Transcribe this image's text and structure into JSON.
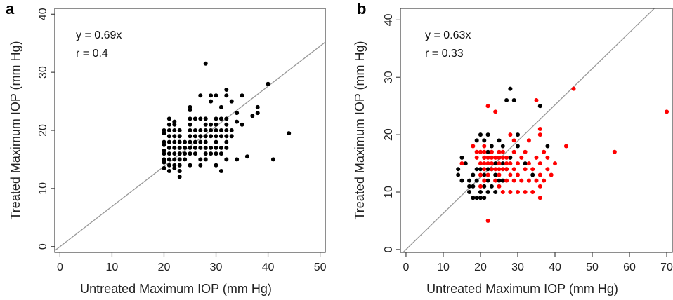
{
  "chart_data": [
    {
      "panel": "a",
      "type": "scatter",
      "xlabel": "Untreated Maximum IOP (mm Hg)",
      "ylabel": "Treated Maximum IOP (mm Hg)",
      "xlim": [
        -1,
        51
      ],
      "ylim": [
        -1,
        41
      ],
      "xticks": [
        0,
        10,
        20,
        30,
        40,
        50
      ],
      "yticks": [
        0,
        10,
        20,
        30,
        40
      ],
      "annotations": [
        "y = 0.69x",
        "r = 0.4"
      ],
      "line": {
        "slope": 0.69,
        "color": "#999999"
      },
      "series": [
        {
          "color": "#000000",
          "points": [
            [
              20,
              13.5
            ],
            [
              20,
              14.5
            ],
            [
              20,
              15
            ],
            [
              20,
              16
            ],
            [
              20,
              16.5
            ],
            [
              20,
              17.5
            ],
            [
              20,
              18
            ],
            [
              20,
              19.5
            ],
            [
              20,
              20
            ],
            [
              21,
              13
            ],
            [
              21,
              14
            ],
            [
              21,
              15
            ],
            [
              21,
              16
            ],
            [
              21,
              17
            ],
            [
              21,
              18
            ],
            [
              21,
              19
            ],
            [
              21,
              20
            ],
            [
              21,
              21
            ],
            [
              21,
              22
            ],
            [
              22,
              13.5
            ],
            [
              22,
              14
            ],
            [
              22,
              15
            ],
            [
              22,
              16
            ],
            [
              22,
              17
            ],
            [
              22,
              18
            ],
            [
              22,
              19
            ],
            [
              22,
              20
            ],
            [
              22,
              21
            ],
            [
              22,
              21.5
            ],
            [
              23,
              12
            ],
            [
              23,
              13
            ],
            [
              23,
              14
            ],
            [
              23,
              15
            ],
            [
              23,
              16
            ],
            [
              23,
              17
            ],
            [
              23,
              18
            ],
            [
              23,
              19
            ],
            [
              23,
              20
            ],
            [
              24,
              15
            ],
            [
              24,
              16
            ],
            [
              24,
              17
            ],
            [
              24,
              18
            ],
            [
              25,
              14
            ],
            [
              25,
              16
            ],
            [
              25,
              17
            ],
            [
              25,
              18
            ],
            [
              25,
              19
            ],
            [
              25,
              20
            ],
            [
              25,
              21
            ],
            [
              25,
              22
            ],
            [
              25,
              23.5
            ],
            [
              25,
              24
            ],
            [
              26,
              16
            ],
            [
              26,
              17
            ],
            [
              26,
              18
            ],
            [
              26,
              19
            ],
            [
              26,
              20
            ],
            [
              26,
              22
            ],
            [
              27,
              14
            ],
            [
              27,
              15
            ],
            [
              27,
              17
            ],
            [
              27,
              18
            ],
            [
              27,
              19
            ],
            [
              27,
              20
            ],
            [
              27,
              22
            ],
            [
              27,
              26
            ],
            [
              28,
              15
            ],
            [
              28,
              16
            ],
            [
              28,
              17
            ],
            [
              28,
              18
            ],
            [
              28,
              19
            ],
            [
              28,
              20
            ],
            [
              28,
              21
            ],
            [
              28,
              22
            ],
            [
              28,
              31.5
            ],
            [
              29,
              16
            ],
            [
              29,
              17
            ],
            [
              29,
              19
            ],
            [
              29,
              20
            ],
            [
              29,
              21
            ],
            [
              29,
              25
            ],
            [
              29,
              26
            ],
            [
              30,
              14
            ],
            [
              30,
              16
            ],
            [
              30,
              17
            ],
            [
              30,
              18
            ],
            [
              30,
              19
            ],
            [
              30,
              20
            ],
            [
              30,
              21
            ],
            [
              30,
              22
            ],
            [
              30,
              26
            ],
            [
              31,
              13
            ],
            [
              31,
              16
            ],
            [
              31,
              17
            ],
            [
              31,
              19
            ],
            [
              31,
              20
            ],
            [
              31,
              22
            ],
            [
              31,
              24
            ],
            [
              32,
              15
            ],
            [
              32,
              17
            ],
            [
              32,
              18
            ],
            [
              32,
              19
            ],
            [
              32,
              20
            ],
            [
              32,
              21
            ],
            [
              32,
              22
            ],
            [
              32,
              26
            ],
            [
              32,
              27
            ],
            [
              33,
              19
            ],
            [
              33,
              20
            ],
            [
              33,
              25
            ],
            [
              34,
              15
            ],
            [
              34,
              21.5
            ],
            [
              34,
              23
            ],
            [
              35,
              21
            ],
            [
              35,
              26
            ],
            [
              36,
              15.5
            ],
            [
              37,
              22.5
            ],
            [
              38,
              23
            ],
            [
              38,
              24
            ],
            [
              40,
              28
            ],
            [
              41,
              15
            ],
            [
              44,
              19.5
            ]
          ]
        }
      ]
    },
    {
      "panel": "b",
      "type": "scatter",
      "xlabel": "Untreated Maximum IOP (mm Hg)",
      "ylabel": "Treated Maximum IOP (mm Hg)",
      "xlim": [
        -1.5,
        71.5
      ],
      "ylim": [
        -0.5,
        42
      ],
      "xticks": [
        0,
        10,
        20,
        30,
        40,
        50,
        60,
        70
      ],
      "yticks": [
        0,
        10,
        20,
        30,
        40
      ],
      "annotations": [
        "y = 0.63x",
        "r = 0.33"
      ],
      "line": {
        "slope": 0.63,
        "color": "#999999"
      },
      "series": [
        {
          "color": "#000000",
          "points": [
            [
              14,
              13
            ],
            [
              14,
              14
            ],
            [
              15,
              12
            ],
            [
              15,
              16
            ],
            [
              16,
              15
            ],
            [
              17,
              10
            ],
            [
              17,
              11
            ],
            [
              17,
              12
            ],
            [
              18,
              9
            ],
            [
              18,
              11
            ],
            [
              18,
              13
            ],
            [
              19,
              9
            ],
            [
              19,
              12
            ],
            [
              19,
              14
            ],
            [
              19,
              19
            ],
            [
              20,
              9
            ],
            [
              20,
              10
            ],
            [
              20,
              14
            ],
            [
              20,
              20
            ],
            [
              21,
              9
            ],
            [
              21,
              11
            ],
            [
              21,
              13
            ],
            [
              21,
              16
            ],
            [
              21,
              19
            ],
            [
              22,
              10
            ],
            [
              22,
              12
            ],
            [
              22,
              14
            ],
            [
              22,
              17
            ],
            [
              22,
              20
            ],
            [
              23,
              11
            ],
            [
              23,
              14
            ],
            [
              23,
              18
            ],
            [
              24,
              10
            ],
            [
              24,
              13
            ],
            [
              24,
              15
            ],
            [
              25,
              12
            ],
            [
              25,
              16
            ],
            [
              25,
              19
            ],
            [
              26,
              12
            ],
            [
              26,
              15
            ],
            [
              26,
              18
            ],
            [
              27,
              14
            ],
            [
              27,
              26
            ],
            [
              28,
              16
            ],
            [
              28,
              28
            ],
            [
              29,
              26
            ],
            [
              30,
              18
            ],
            [
              30,
              20
            ],
            [
              32,
              15
            ],
            [
              34,
              13
            ],
            [
              36,
              25
            ],
            [
              38,
              18
            ]
          ]
        },
        {
          "color": "#ff0000",
          "points": [
            [
              15,
              15
            ],
            [
              18,
              18
            ],
            [
              19,
              16
            ],
            [
              19,
              17
            ],
            [
              20,
              11
            ],
            [
              20,
              13
            ],
            [
              20,
              15
            ],
            [
              20,
              17
            ],
            [
              21,
              12
            ],
            [
              21,
              14
            ],
            [
              21,
              15
            ],
            [
              21,
              16
            ],
            [
              21,
              17
            ],
            [
              21,
              18
            ],
            [
              22,
              5
            ],
            [
              22,
              13
            ],
            [
              22,
              15
            ],
            [
              22,
              16
            ],
            [
              22,
              25
            ],
            [
              23,
              14
            ],
            [
              23,
              15
            ],
            [
              23,
              16
            ],
            [
              23,
              17
            ],
            [
              24,
              12
            ],
            [
              24,
              14
            ],
            [
              24,
              16
            ],
            [
              24,
              24
            ],
            [
              25,
              11
            ],
            [
              25,
              13
            ],
            [
              25,
              14
            ],
            [
              25,
              15
            ],
            [
              25,
              16
            ],
            [
              25,
              17
            ],
            [
              26,
              10
            ],
            [
              26,
              14
            ],
            [
              26,
              16
            ],
            [
              26,
              17
            ],
            [
              27,
              12
            ],
            [
              27,
              14
            ],
            [
              27,
              15
            ],
            [
              27,
              16
            ],
            [
              28,
              10
            ],
            [
              28,
              13
            ],
            [
              28,
              15
            ],
            [
              28,
              20
            ],
            [
              29,
              12
            ],
            [
              29,
              14
            ],
            [
              29,
              17
            ],
            [
              29,
              19
            ],
            [
              30,
              10
            ],
            [
              30,
              13
            ],
            [
              30,
              15
            ],
            [
              31,
              12
            ],
            [
              31,
              16
            ],
            [
              32,
              10
            ],
            [
              32,
              14
            ],
            [
              32,
              17
            ],
            [
              33,
              12
            ],
            [
              33,
              15
            ],
            [
              33,
              19
            ],
            [
              34,
              10
            ],
            [
              34,
              14
            ],
            [
              35,
              12
            ],
            [
              35,
              16
            ],
            [
              35,
              26
            ],
            [
              36,
              9
            ],
            [
              36,
              11
            ],
            [
              36,
              13
            ],
            [
              36,
              15
            ],
            [
              36,
              20
            ],
            [
              36,
              21
            ],
            [
              37,
              12
            ],
            [
              37,
              17
            ],
            [
              38,
              14
            ],
            [
              38,
              16
            ],
            [
              39,
              13
            ],
            [
              40,
              15
            ],
            [
              43,
              18
            ],
            [
              45,
              28
            ],
            [
              56,
              17
            ],
            [
              70,
              24
            ]
          ]
        }
      ]
    }
  ]
}
